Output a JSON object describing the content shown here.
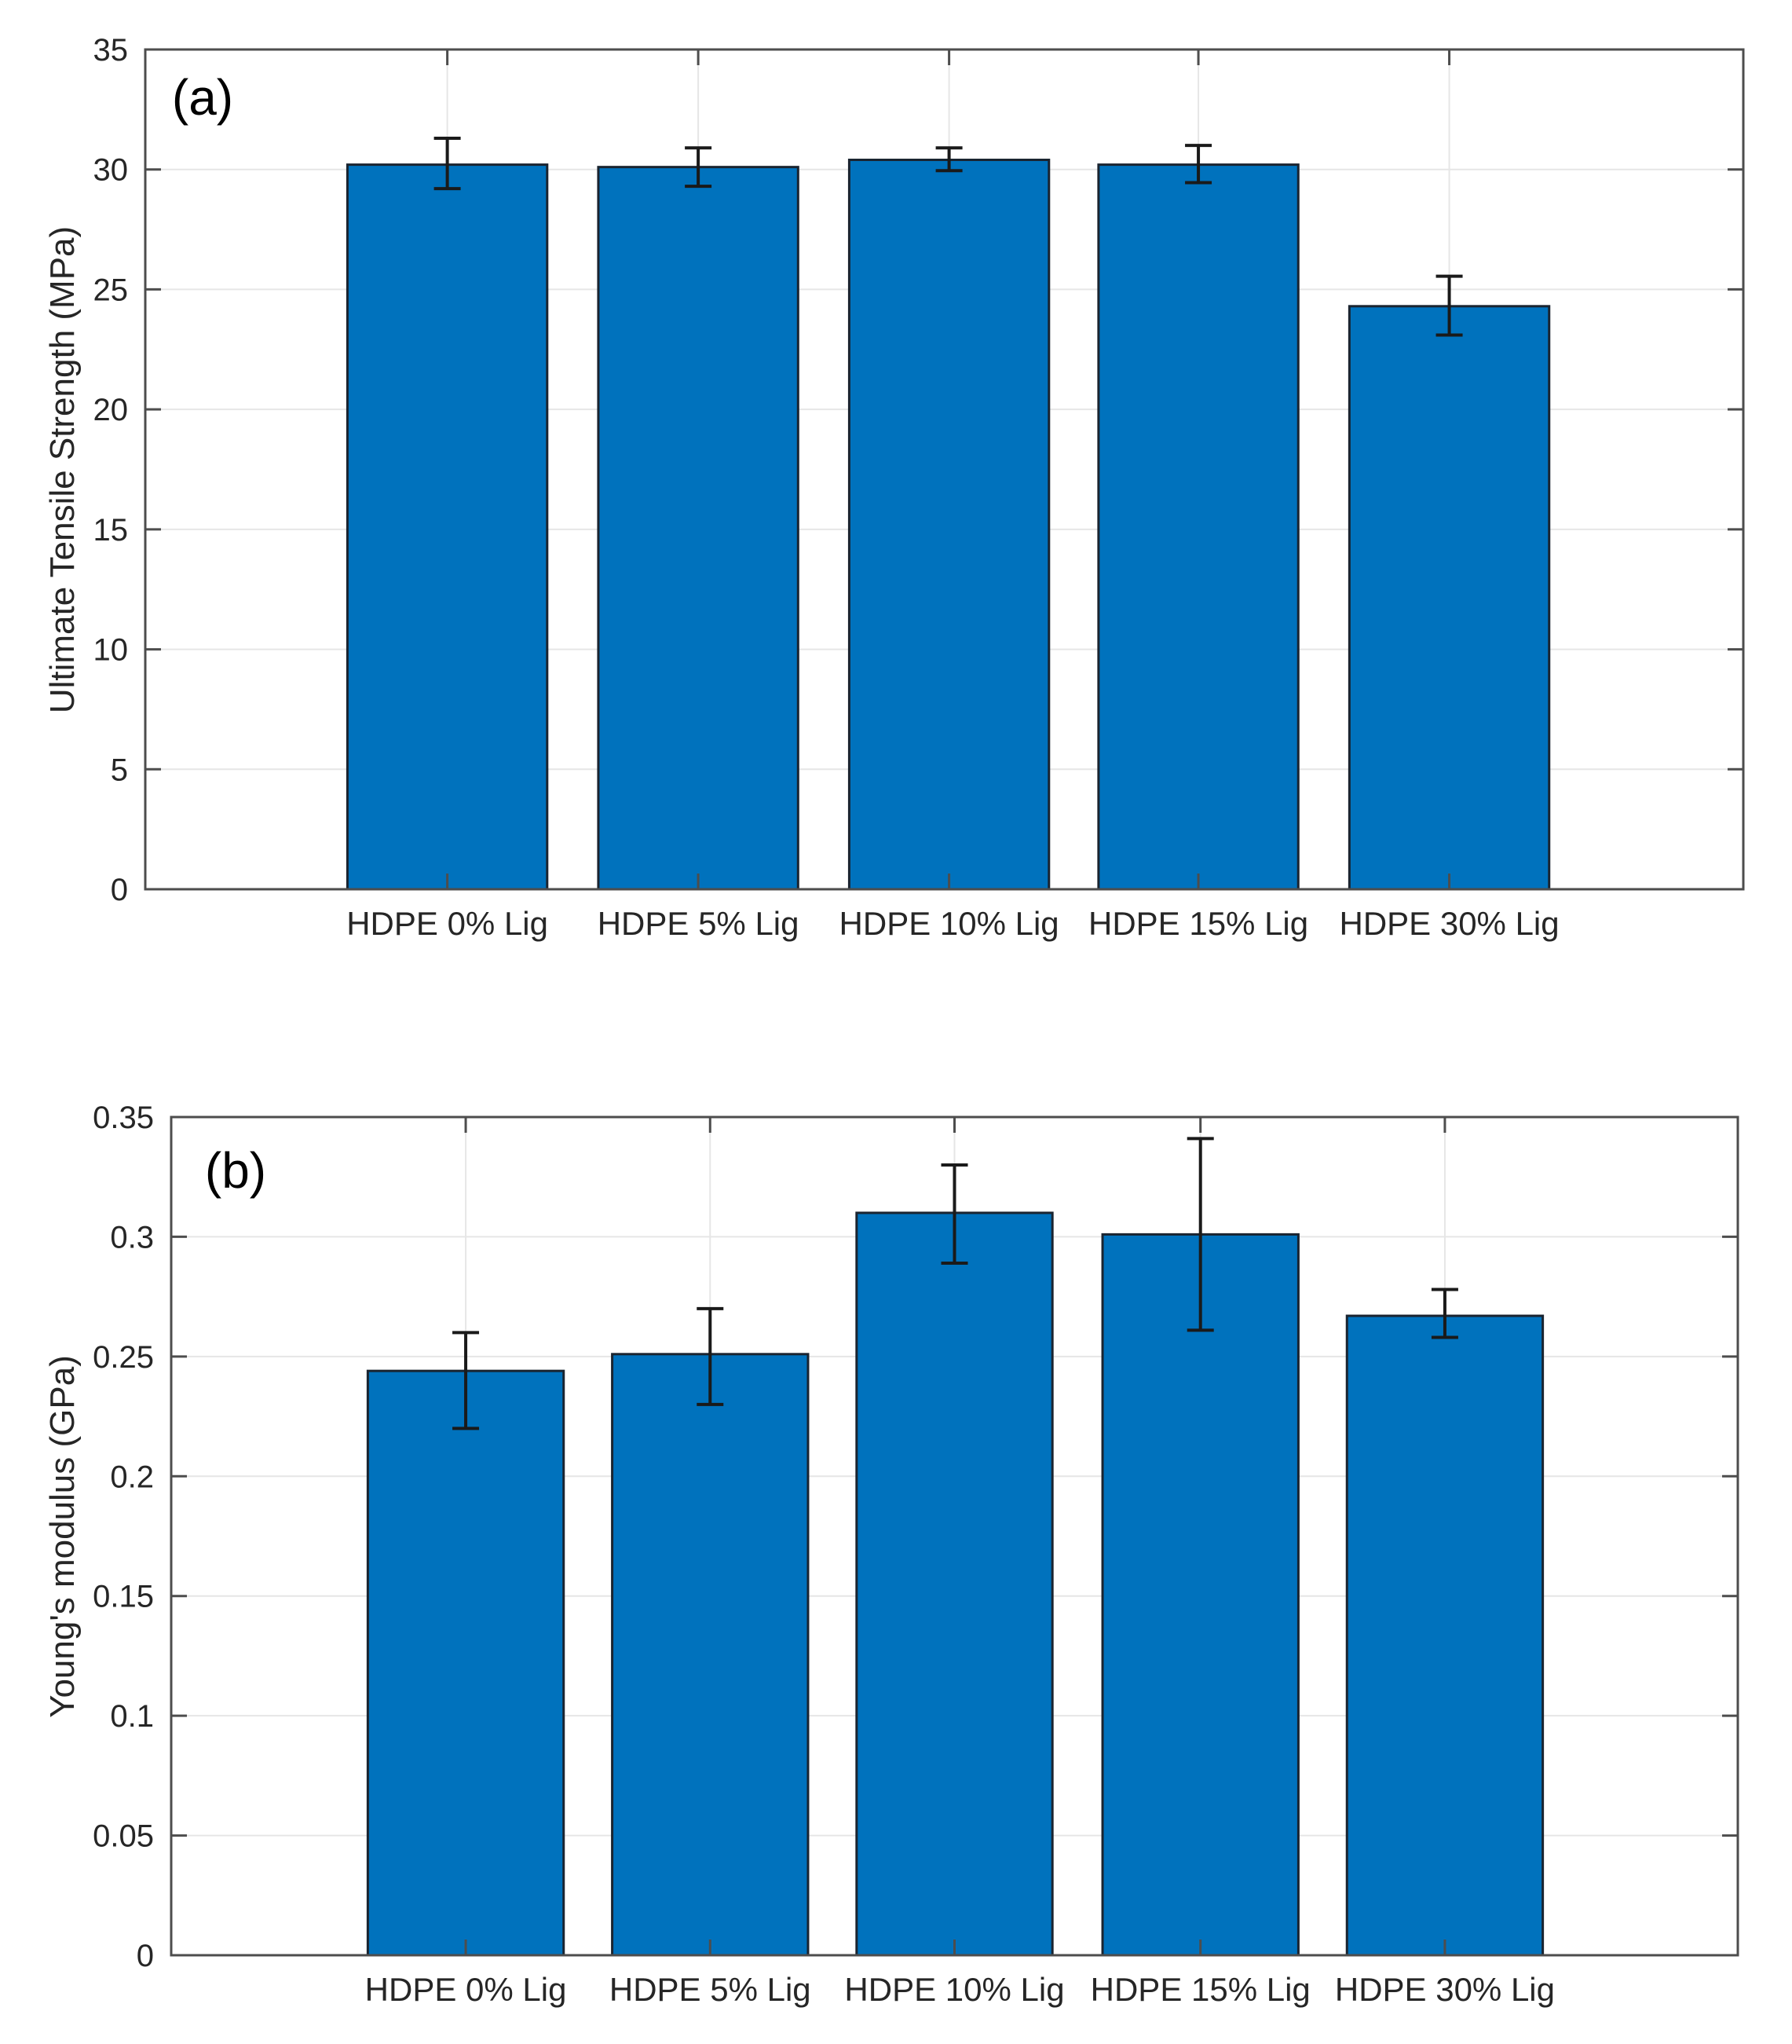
{
  "figure": {
    "background": "#ffffff",
    "text_color": "#262626",
    "axis_color": "#4d4d4d",
    "grid_color": "#e6e6e6"
  },
  "chart_data": [
    {
      "type": "bar",
      "panel_label": "(a)",
      "ylabel": "Ultimate Tensile Strength (MPa)",
      "xlabel": "",
      "categories": [
        "HDPE 0% Lig",
        "HDPE 5% Lig",
        "HDPE 10% Lig",
        "HDPE 15% Lig",
        "HDPE 30% Lig"
      ],
      "values": [
        30.2,
        30.1,
        30.4,
        30.2,
        24.3
      ],
      "error_plus": [
        1.1,
        0.8,
        0.5,
        0.8,
        1.25
      ],
      "error_minus": [
        1.0,
        0.8,
        0.45,
        0.75,
        1.2
      ],
      "ylim": [
        0,
        35
      ],
      "yticks": [
        0,
        5,
        10,
        15,
        20,
        25,
        30,
        35
      ],
      "ytick_labels": [
        "0",
        "5",
        "10",
        "15",
        "20",
        "25",
        "30",
        "35"
      ],
      "grid": "on",
      "legend": "none",
      "bar_color": "#0072BD",
      "bar_edge_color": "#1a2430",
      "errorbar_color": "#1a1a1a"
    },
    {
      "type": "bar",
      "panel_label": "(b)",
      "ylabel": "Young's modulus (GPa)",
      "xlabel": "",
      "categories": [
        "HDPE 0% Lig",
        "HDPE 5% Lig",
        "HDPE 10% Lig",
        "HDPE 15% Lig",
        "HDPE 30% Lig"
      ],
      "values": [
        0.244,
        0.251,
        0.31,
        0.301,
        0.267
      ],
      "error_plus": [
        0.016,
        0.019,
        0.02,
        0.04,
        0.011
      ],
      "error_minus": [
        0.024,
        0.021,
        0.021,
        0.04,
        0.009
      ],
      "ylim": [
        0,
        0.35
      ],
      "yticks": [
        0,
        0.05,
        0.1,
        0.15,
        0.2,
        0.25,
        0.3,
        0.35
      ],
      "ytick_labels": [
        "0",
        "0.05",
        "0.1",
        "0.15",
        "0.2",
        "0.25",
        "0.3",
        "0.35"
      ],
      "grid": "on",
      "legend": "none",
      "bar_color": "#0072BD",
      "bar_edge_color": "#1a2430",
      "errorbar_color": "#1a1a1a"
    }
  ]
}
